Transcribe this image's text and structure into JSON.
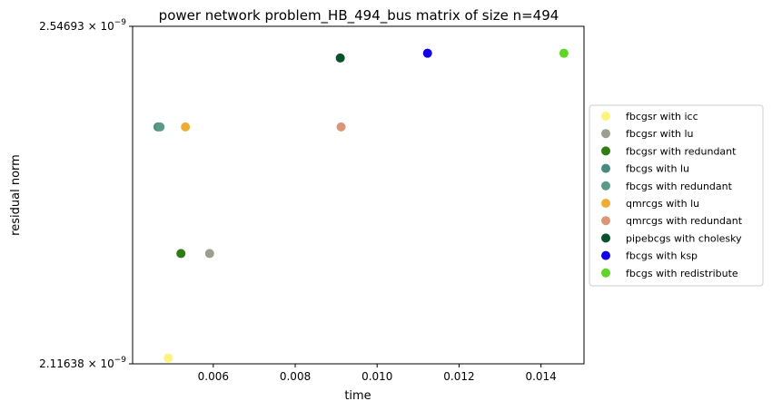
{
  "chart_data": {
    "type": "scatter",
    "title": "power network problem_HB_494_bus matrix of size n=494",
    "xlabel": "time",
    "ylabel": "residual norm",
    "xlim": [
      0.00403,
      0.01505
    ],
    "ylim": [
      2.11638e-09,
      2.54693e-09
    ],
    "x_ticks": [
      0.006,
      0.008,
      0.01,
      0.012,
      0.014
    ],
    "x_tick_labels": [
      "0.006",
      "0.008",
      "0.010",
      "0.012",
      "0.014"
    ],
    "y_ticks": [
      {
        "value": 2.54693e-09,
        "mantissa": "2.54693",
        "base": "10",
        "exp": "−9"
      },
      {
        "value": 2.11638e-09,
        "mantissa": "2.11638",
        "base": "10",
        "exp": "−9"
      }
    ],
    "grid": false,
    "legend_placement": "center-right outside plot",
    "series": [
      {
        "name": "fbcgsr with icc",
        "color": "#fdf47a",
        "x": [
          0.0049
        ],
        "y": [
          2.1238e-09
        ]
      },
      {
        "name": "fbcgsr with lu",
        "color": "#9c9f8d",
        "x": [
          0.00591
        ],
        "y": [
          2.2571e-09
        ]
      },
      {
        "name": "fbcgsr with redundant",
        "color": "#2e7d12",
        "x": [
          0.00521
        ],
        "y": [
          2.2571e-09
        ]
      },
      {
        "name": "fbcgs with lu",
        "color": "#468a80",
        "x": [
          0.00465
        ],
        "y": [
          2.4186e-09
        ]
      },
      {
        "name": "fbcgs with redundant",
        "color": "#5b9a89",
        "x": [
          0.0047
        ],
        "y": [
          2.4186e-09
        ]
      },
      {
        "name": "qmrcgs with lu",
        "color": "#efac34",
        "x": [
          0.00532
        ],
        "y": [
          2.4186e-09
        ]
      },
      {
        "name": "qmrcgs with redundant",
        "color": "#d99777",
        "x": [
          0.00912
        ],
        "y": [
          2.4186e-09
        ]
      },
      {
        "name": "pipebcgs with cholesky",
        "color": "#07522d",
        "x": [
          0.0091
        ],
        "y": [
          2.5065e-09
        ]
      },
      {
        "name": "fbcgs with ksp",
        "color": "#0f00e8",
        "x": [
          0.01123
        ],
        "y": [
          2.5126e-09
        ]
      },
      {
        "name": "fbcgs with redistribute",
        "color": "#5fd626",
        "x": [
          0.01456
        ],
        "y": [
          2.5126e-09
        ]
      }
    ]
  }
}
